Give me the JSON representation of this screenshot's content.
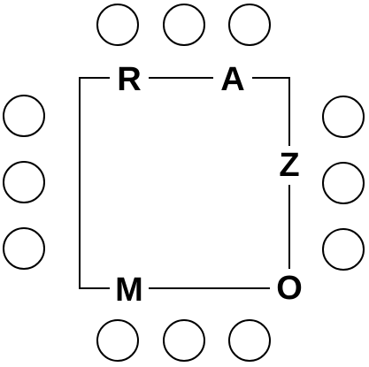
{
  "puzzle": {
    "side_letters": {
      "top": [
        "R",
        "A"
      ],
      "right": [
        "Z"
      ],
      "bottom": [
        "M",
        "O"
      ]
    },
    "answer_slots": {
      "top": 3,
      "bottom": 3,
      "left": 3,
      "right": 3
    },
    "colors": {
      "ink": "#000000",
      "background": "#ffffff"
    }
  }
}
